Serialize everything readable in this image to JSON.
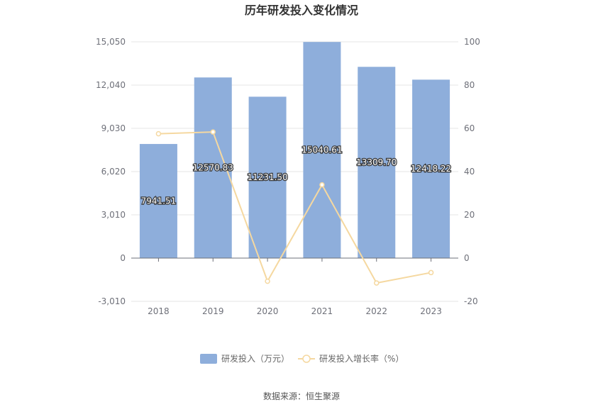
{
  "chart_data": {
    "type": "bar",
    "title": "历年研发投入变化情况",
    "categories": [
      "2018",
      "2019",
      "2020",
      "2021",
      "2022",
      "2023"
    ],
    "series": [
      {
        "name": "研发投入（万元）",
        "type": "bar",
        "axis": "left",
        "color": "#8eaedb",
        "values": [
          7941.51,
          12570.83,
          11231.5,
          15040.61,
          13309.7,
          12418.22
        ],
        "labels": [
          "7941.51",
          "12570.83",
          "11231.50",
          "15040.61",
          "13309.70",
          "12418.22"
        ]
      },
      {
        "name": "研发投入增长率（%）",
        "type": "line",
        "axis": "right",
        "color": "#f5d8a0",
        "values": [
          57.5,
          58.3,
          -10.7,
          33.9,
          -11.5,
          -6.7
        ]
      }
    ],
    "y_left": {
      "min": -3010,
      "max": 15050,
      "ticks": [
        -3010,
        0,
        3010,
        6020,
        9030,
        12040,
        15050
      ],
      "tick_labels": [
        "-3,010",
        "0",
        "3,010",
        "6,020",
        "9,030",
        "12,040",
        "15,050"
      ]
    },
    "y_right": {
      "min": -20,
      "max": 100,
      "ticks": [
        -20,
        0,
        20,
        40,
        60,
        80,
        100
      ],
      "tick_labels": [
        "-20",
        "0",
        "20",
        "40",
        "60",
        "80",
        "100"
      ]
    },
    "grid": true,
    "legend_position": "bottom"
  },
  "source_text": "数据来源：恒生聚源"
}
